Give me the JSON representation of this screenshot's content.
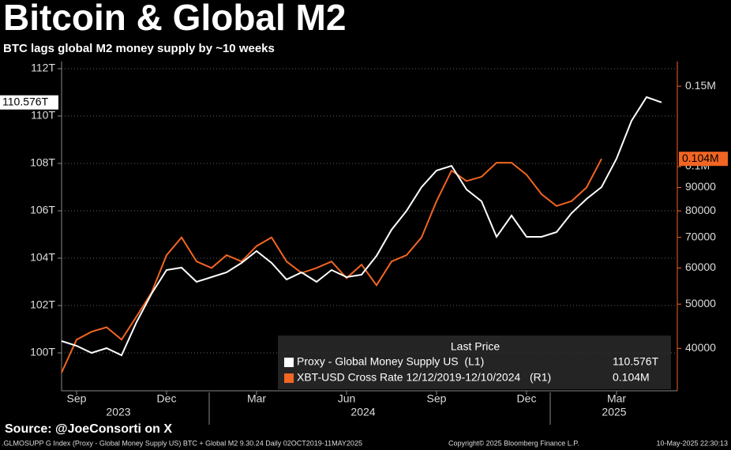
{
  "chart_data": {
    "type": "line",
    "title": "Bitcoin & Global M2",
    "subtitle": "BTC lags global M2 money supply by ~10 weeks",
    "source": "Source: @JoeConsorti on X",
    "footer_left": ".GLMOSUPP G Index (Proxy - Global Money Supply US) BTC + Global M2 9.30.24  Daily 02OCT2019-11MAY2025",
    "footer_center": "Copyright© 2025 Bloomberg Finance L.P.",
    "footer_right": "10-May-2025 22:30:13",
    "legend_header": "Last Price",
    "x_groups": [
      "2023",
      "2024",
      "2025"
    ],
    "categories": [
      null,
      "Sep",
      null,
      null,
      null,
      null,
      null,
      "Dec",
      null,
      null,
      null,
      null,
      null,
      "Mar",
      null,
      null,
      null,
      null,
      null,
      "Jun",
      null,
      null,
      null,
      null,
      null,
      "Sep",
      null,
      null,
      null,
      null,
      null,
      "Dec",
      null,
      null,
      null,
      null,
      null,
      "Mar",
      null,
      null,
      null
    ],
    "ylim": [
      98.4,
      112.3
    ],
    "yticks": [
      {
        "value": 100,
        "label": "100T"
      },
      {
        "value": 102,
        "label": "102T"
      },
      {
        "value": 104,
        "label": "104T"
      },
      {
        "value": 106,
        "label": "106T"
      },
      {
        "value": 108,
        "label": "108T"
      },
      {
        "value": 110,
        "label": "110T"
      },
      {
        "value": 112,
        "label": "112T"
      }
    ],
    "y2lim": [
      32300,
      169800
    ],
    "y2_log": true,
    "y2ticks": [
      40000,
      50000,
      60000,
      70000,
      80000,
      90000,
      {
        "value": 100000,
        "label": "0.1M"
      },
      {
        "value": 150000,
        "label": "0.15M"
      }
    ],
    "grid": true,
    "series": [
      {
        "name": "Proxy - Global Money Supply US  (L1)",
        "color": "#ffffff",
        "axis": "y",
        "last": {
          "value": 110.576,
          "label": "110.576T"
        },
        "values": [
          100.5,
          100.3,
          100.0,
          100.2,
          99.9,
          101.3,
          102.5,
          103.5,
          103.6,
          103.0,
          103.2,
          103.4,
          103.8,
          104.3,
          103.8,
          103.1,
          103.4,
          103.0,
          103.5,
          103.2,
          103.3,
          104.1,
          105.2,
          106.0,
          107.0,
          107.7,
          107.9,
          106.9,
          106.4,
          104.9,
          105.8,
          104.9,
          104.9,
          105.1,
          105.9,
          106.5,
          107.0,
          108.2,
          109.8,
          110.8,
          110.576
        ]
      },
      {
        "name": "XBT-USD Cross Rate 12/12/2019-12/10/2024   (R1)",
        "color": "#f26522",
        "axis": "y2",
        "last": {
          "value": 104000,
          "label": "0.104M"
        },
        "values": [
          35400,
          41800,
          43500,
          44500,
          41800,
          47000,
          53000,
          64000,
          70000,
          62000,
          60000,
          64000,
          62000,
          67000,
          70000,
          62000,
          58500,
          60000,
          62000,
          57000,
          61000,
          55000,
          62000,
          64000,
          70000,
          84000,
          98000,
          93000,
          95000,
          102000,
          102000,
          96000,
          87000,
          82000,
          84000,
          90000,
          104000,
          null,
          null,
          null,
          null
        ]
      }
    ]
  }
}
